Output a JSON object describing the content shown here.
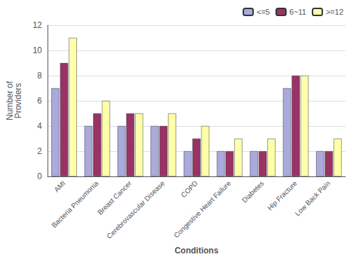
{
  "chart_data": {
    "type": "bar",
    "categories": [
      "AMI",
      "Bacteria Pneumonia",
      "Breast Cancer",
      "Cerebrovascular Disease",
      "COPD",
      "Congestive Heart Failure",
      "Diabetes",
      "Hip Fracture",
      "Low Back Pain"
    ],
    "series": [
      {
        "name": "<=5",
        "color": "#aaaadd",
        "values": [
          7,
          4,
          4,
          4,
          2,
          2,
          2,
          7,
          2
        ]
      },
      {
        "name": "6~11",
        "color": "#993366",
        "values": [
          9,
          5,
          5,
          4,
          3,
          2,
          2,
          8,
          2
        ]
      },
      {
        "name": ">=12",
        "color": "#ffffaa",
        "values": [
          11,
          6,
          5,
          5,
          4,
          3,
          3,
          8,
          3
        ]
      }
    ],
    "xlabel": "Conditions",
    "ylabel": "Number of\nProviders",
    "ylim": [
      0,
      12
    ],
    "yticks": [
      0,
      2,
      4,
      6,
      8,
      10,
      12
    ],
    "grid": true,
    "legend": "upper right"
  }
}
